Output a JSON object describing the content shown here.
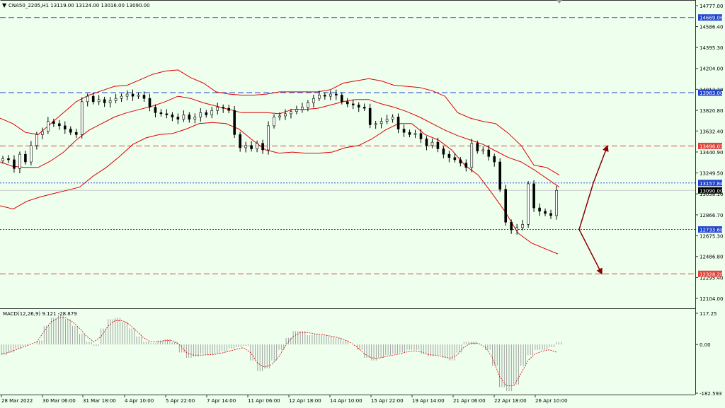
{
  "header": {
    "symbol_info": "CNA50_2205,H1  13119.00 13124.00 13016.00 13090.00"
  },
  "macd_panel": {
    "label": "MACD(12,26,9) 9.121 -28.879"
  },
  "chart_data": [
    {
      "type": "candlestick",
      "title": "",
      "symbol": "CNA50_2205",
      "timeframe": "H1",
      "ohlc_current": {
        "open": 13119.0,
        "high": 13124.0,
        "low": 13016.0,
        "close": 13090.0
      },
      "ylim": [
        12000,
        14780
      ],
      "y_tick_labels": [
        "14777.00",
        "14586.40",
        "14395.30",
        "14204.00",
        "14013.20",
        "13820.80",
        "13632.40",
        "13440.90",
        "13249.50",
        "13058.10",
        "12866.70",
        "12675.30",
        "12486.80",
        "12295.40",
        "12104.00"
      ],
      "x_tick_labels": [
        "28 Mar 2022",
        "30 Mar 06:00",
        "31 Mar 18:00",
        "4 Apr 10:00",
        "5 Apr 22:00",
        "7 Apr 14:00",
        "11 Apr 06:00",
        "12 Apr 18:00",
        "14 Apr 10:00",
        "15 Apr 22:00",
        "19 Apr 14:00",
        "21 Apr 06:00",
        "22 Apr 18:00",
        "26 Apr 10:00"
      ],
      "price_levels": [
        {
          "value": 14669.06,
          "label": "14669.06",
          "color": "#2244cc",
          "style": "dashed"
        },
        {
          "value": 13983.0,
          "label": "13983.00",
          "color": "#2244cc",
          "style": "dashed"
        },
        {
          "value": 13496.03,
          "label": "13496.03",
          "color": "#e0443a",
          "style": "dashed"
        },
        {
          "value": 13157.84,
          "label": "13157.84",
          "color": "#2244cc",
          "style": "dotted"
        },
        {
          "value": 13090.0,
          "label": "13090.00",
          "color": "#000000",
          "style": "solid"
        },
        {
          "value": 12733.68,
          "label": "12733.68",
          "color": "#2244cc",
          "style": "dotted"
        },
        {
          "value": 12328.2,
          "label": "12328.20",
          "color": "#e0443a",
          "style": "dashed"
        }
      ],
      "close_series": [
        13380,
        13370,
        13290,
        13420,
        13350,
        13500,
        13600,
        13630,
        13720,
        13700,
        13680,
        13650,
        13620,
        13600,
        13900,
        13950,
        13900,
        13920,
        13890,
        13910,
        13930,
        13950,
        13970,
        13950,
        13960,
        13930,
        13850,
        13800,
        13790,
        13780,
        13760,
        13740,
        13780,
        13740,
        13760,
        13800,
        13780,
        13820,
        13850,
        13840,
        13820,
        13600,
        13480,
        13500,
        13470,
        13520,
        13460,
        13680,
        13760,
        13770,
        13790,
        13810,
        13830,
        13850,
        13890,
        13930,
        13960,
        13950,
        13970,
        13960,
        13900,
        13880,
        13870,
        13850,
        13840,
        13690,
        13700,
        13720,
        13740,
        13760,
        13650,
        13620,
        13600,
        13610,
        13560,
        13500,
        13530,
        13470,
        13420,
        13390,
        13370,
        13340,
        13300,
        13520,
        13450,
        13460,
        13400,
        13350,
        13100,
        12800,
        12730,
        12750,
        12780,
        13150,
        12930,
        12900,
        12880,
        12860,
        13090
      ],
      "bollinger_upper": [
        13750,
        13700,
        13620,
        13600,
        13700,
        13800,
        13900,
        13960,
        14000,
        14040,
        14050,
        14100,
        14150,
        14180,
        14190,
        14120,
        14070,
        13990,
        13970,
        13960,
        13960,
        13970,
        13990,
        13990,
        13990,
        13990,
        14010,
        14070,
        14090,
        14110,
        14090,
        14050,
        14040,
        14030,
        14000,
        13950,
        13800,
        13750,
        13720,
        13700,
        13610,
        13500,
        13320,
        13300,
        13230
      ],
      "bollinger_middle": [
        13350,
        13310,
        13300,
        13300,
        13360,
        13440,
        13550,
        13640,
        13700,
        13760,
        13800,
        13830,
        13860,
        13900,
        13950,
        13930,
        13890,
        13860,
        13830,
        13800,
        13800,
        13800,
        13790,
        13830,
        13830,
        13840,
        13870,
        13900,
        13920,
        13920,
        13880,
        13850,
        13810,
        13760,
        13700,
        13640,
        13590,
        13550,
        13510,
        13450,
        13390,
        13350,
        13280,
        13200,
        13120
      ],
      "bollinger_lower": [
        12950,
        12920,
        12990,
        13030,
        13060,
        13090,
        13120,
        13220,
        13300,
        13400,
        13510,
        13570,
        13600,
        13610,
        13650,
        13700,
        13710,
        13700,
        13650,
        13550,
        13460,
        13430,
        13440,
        13430,
        13430,
        13440,
        13480,
        13500,
        13560,
        13640,
        13700,
        13700,
        13600,
        13550,
        13460,
        13320,
        13230,
        13070,
        12900,
        12700,
        12610,
        12560,
        12510
      ],
      "scenario_arrows": [
        {
          "from": 12733.68,
          "to": 13157.84,
          "then": 13496.03,
          "direction": "up"
        },
        {
          "from": 12733.68,
          "to": 12328.2,
          "direction": "down"
        }
      ]
    },
    {
      "type": "bar",
      "title": "",
      "indicator": "MACD(12,26,9)",
      "values_label": "9.121 -28.879",
      "ylim": [
        -182.593,
        117.25
      ],
      "y_tick_labels": [
        "117.25",
        "0.00",
        "-182.593"
      ],
      "histogram": [
        -40,
        -30,
        -15,
        -5,
        0,
        15,
        70,
        100,
        110,
        95,
        70,
        40,
        10,
        -5,
        60,
        95,
        100,
        85,
        60,
        30,
        10,
        5,
        15,
        20,
        10,
        -30,
        -50,
        -45,
        -35,
        -40,
        -35,
        -25,
        -15,
        -10,
        -5,
        -60,
        -100,
        -90,
        -60,
        -20,
        25,
        50,
        50,
        35,
        40,
        35,
        30,
        25,
        15,
        0,
        -20,
        -50,
        -60,
        -50,
        -40,
        -35,
        -30,
        -20,
        -20,
        -35,
        -45,
        -40,
        -50,
        -60,
        -30,
        10,
        10,
        0,
        -20,
        -80,
        -160,
        -175,
        -150,
        -80,
        -40,
        -20,
        -20,
        -10,
        9
      ],
      "signal": [
        -35,
        -30,
        -20,
        -10,
        0,
        10,
        50,
        85,
        100,
        100,
        85,
        60,
        30,
        10,
        30,
        70,
        90,
        90,
        75,
        50,
        25,
        10,
        10,
        15,
        15,
        0,
        -30,
        -40,
        -40,
        -38,
        -37,
        -32,
        -25,
        -18,
        -12,
        -30,
        -70,
        -85,
        -75,
        -45,
        0,
        30,
        45,
        45,
        40,
        38,
        33,
        28,
        20,
        8,
        -10,
        -35,
        -50,
        -52,
        -45,
        -40,
        -35,
        -28,
        -24,
        -28,
        -38,
        -40,
        -45,
        -52,
        -40,
        -10,
        5,
        5,
        -10,
        -50,
        -120,
        -155,
        -155,
        -110,
        -60,
        -35,
        -25,
        -20,
        -29
      ]
    }
  ]
}
